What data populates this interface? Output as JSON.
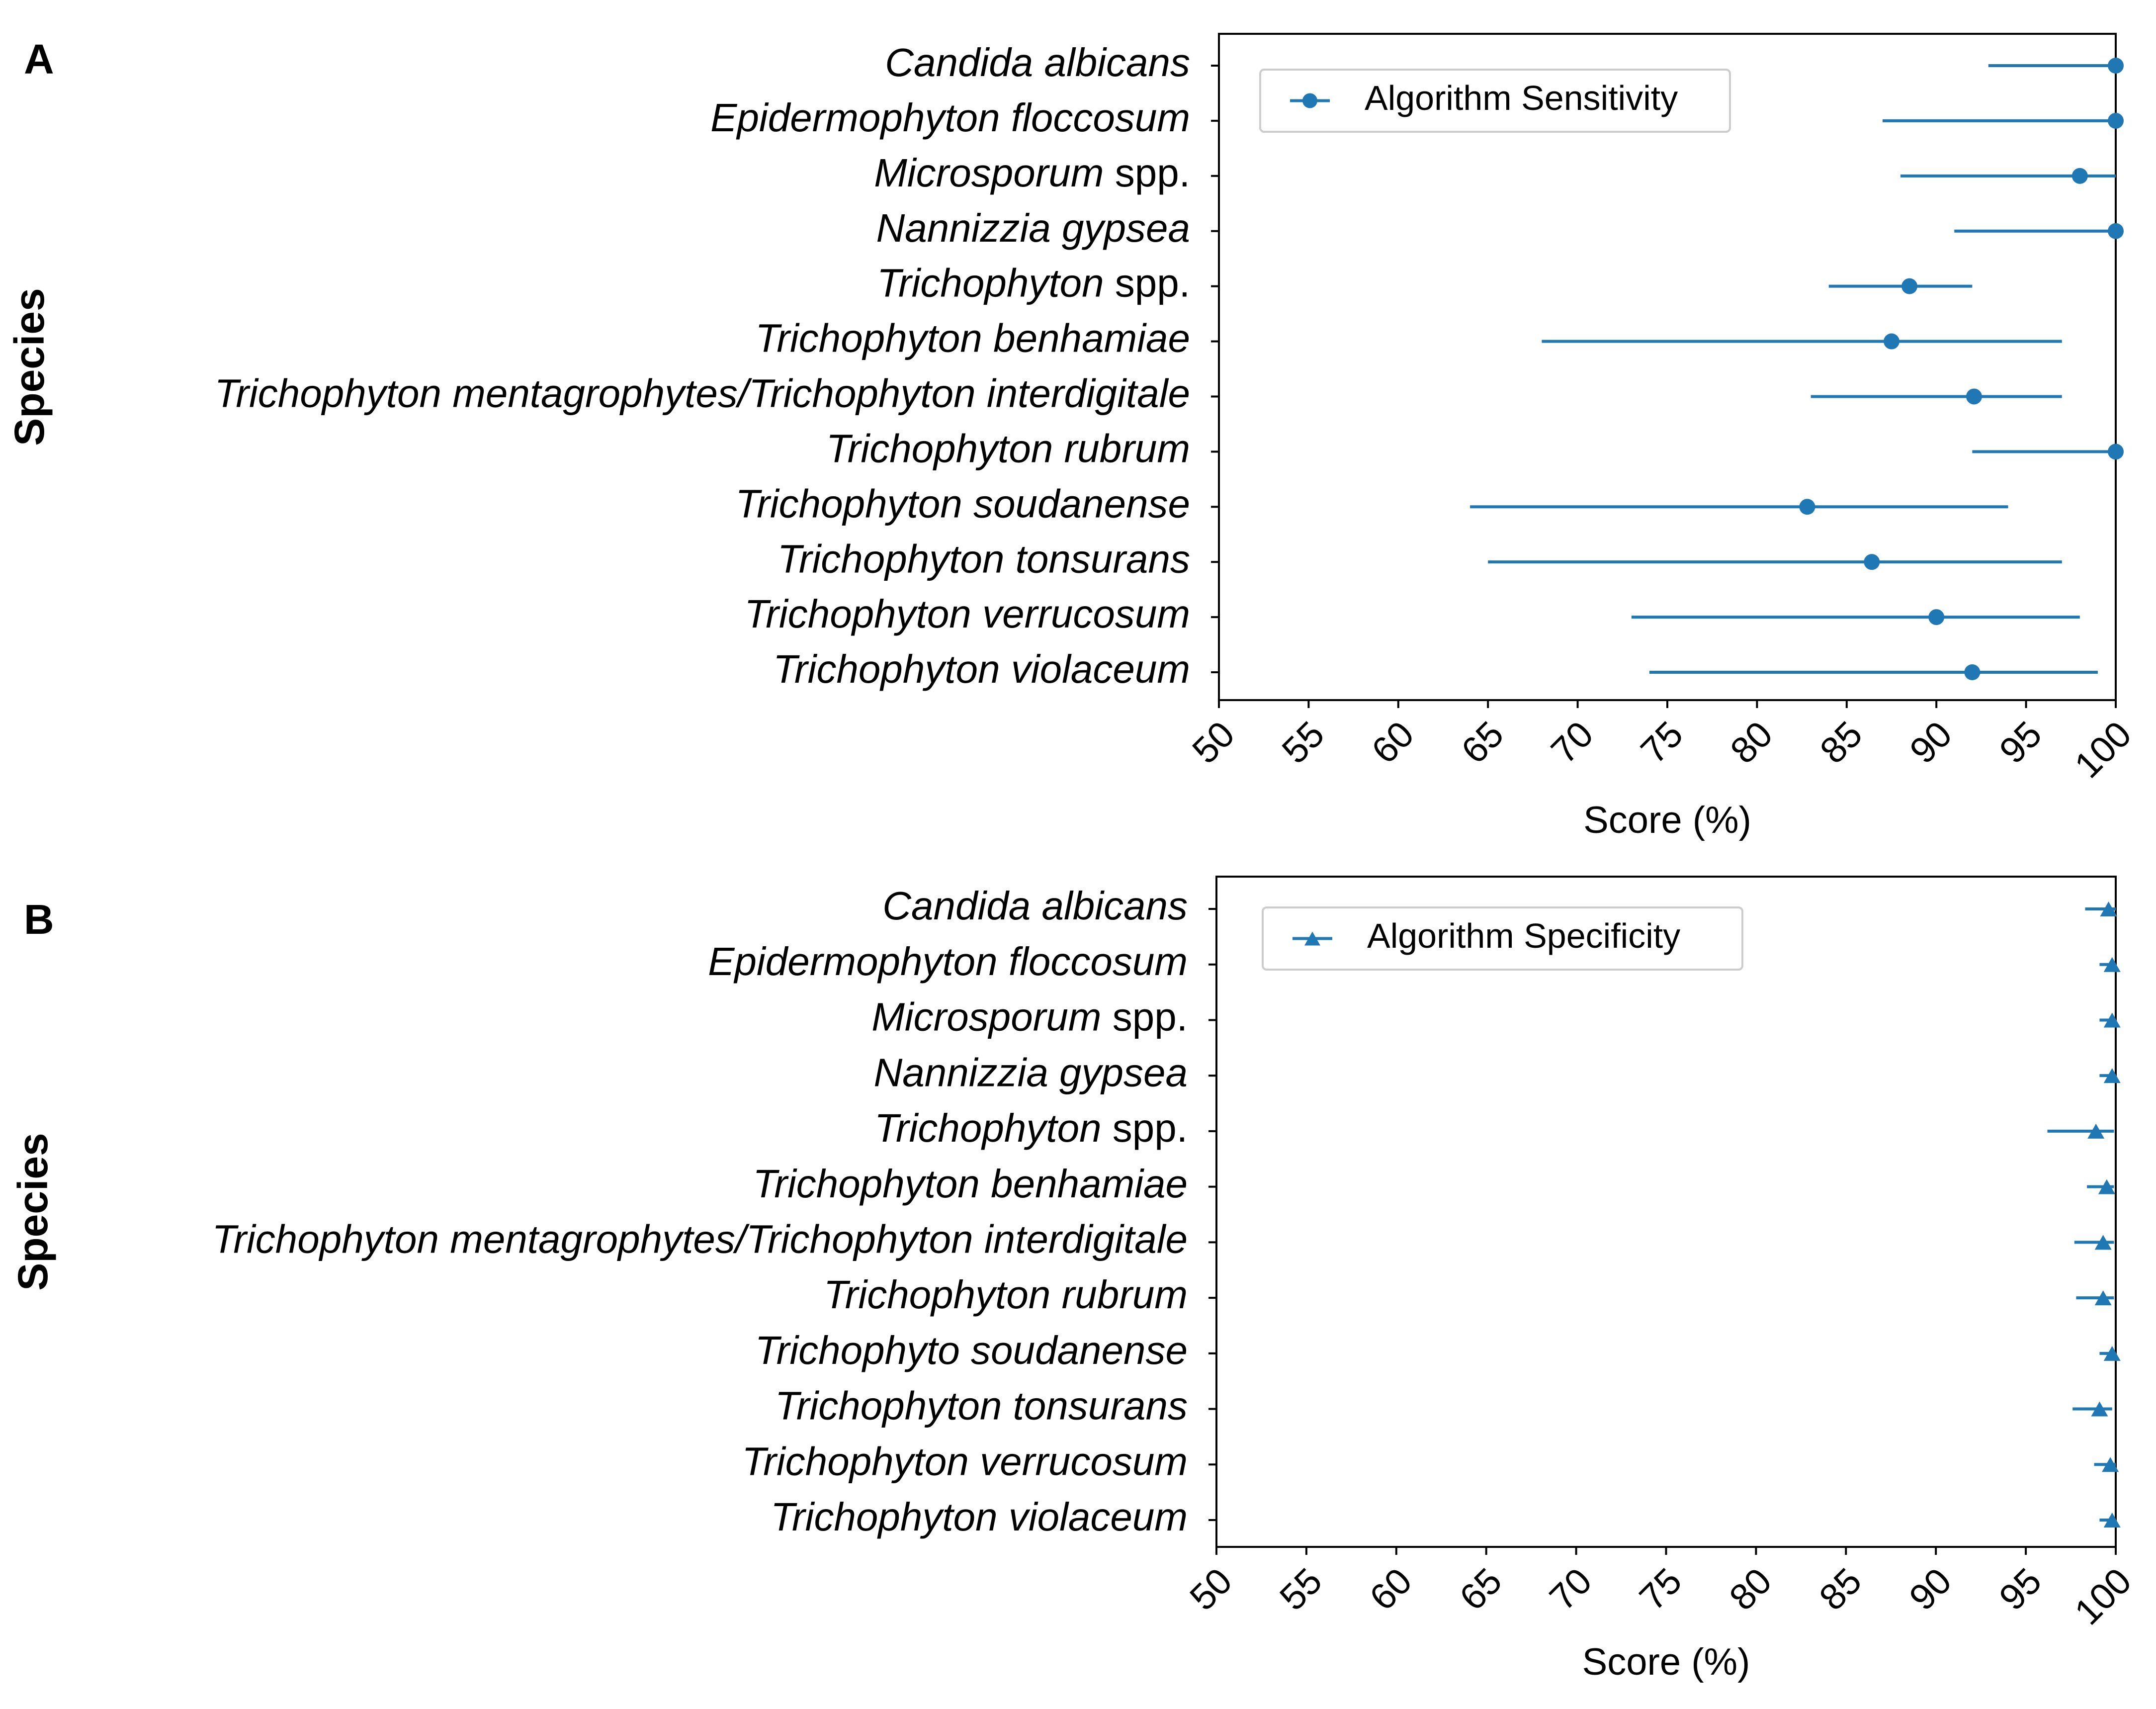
{
  "chart_data": [
    {
      "type": "scatter",
      "panel_label": "A",
      "categories": [
        "Candida albicans",
        "Epidermophyton floccosum",
        "Microsporum spp.",
        "Nannizzia gypsea",
        "Trichophyton spp.",
        "Trichophyton benhamiae",
        "Trichophyton mentagrophytes/Trichophyton interdigitale",
        "Trichophyton rubrum",
        "Trichophyton soudanense",
        "Trichophyton tonsurans",
        "Trichophyton verrucosum",
        "Trichophyton violaceum"
      ],
      "series": [
        {
          "name": "Algorithm Sensitivity",
          "marker": "circle",
          "color": "#1f77b4",
          "values": [
            100,
            100,
            98,
            100,
            88.5,
            87.5,
            92.1,
            100,
            82.8,
            86.4,
            90,
            92
          ],
          "ci_low": [
            92.9,
            87,
            88,
            91,
            84,
            68,
            83,
            92,
            64,
            65,
            73,
            74
          ],
          "ci_high": [
            100,
            100,
            100,
            100,
            92,
            97,
            97,
            100,
            94,
            97,
            98,
            99
          ]
        }
      ],
      "xlim": [
        50,
        100
      ],
      "xticks": [
        "50",
        "55",
        "60",
        "65",
        "70",
        "75",
        "80",
        "85",
        "90",
        "95",
        "100"
      ],
      "xlabel": "Score (%)",
      "ylabel": "Species",
      "legend_position": "top-left"
    },
    {
      "type": "scatter",
      "panel_label": "B",
      "categories": [
        "Candida albicans",
        "Epidermophyton floccosum",
        "Microsporum spp.",
        "Nannizzia gypsea",
        "Trichophyton spp.",
        "Trichophyton benhamiae",
        "Trichophyton mentagrophytes/Trichophyton interdigitale",
        "Trichophyton rubrum",
        "Trichophyto soudanense",
        "Trichophyton tonsurans",
        "Trichophyton verrucosum",
        "Trichophyton violaceum"
      ],
      "series": [
        {
          "name": "Algorithm Specificity",
          "marker": "triangle",
          "color": "#1f77b4",
          "values": [
            99.6,
            99.8,
            99.8,
            99.8,
            98.9,
            99.5,
            99.3,
            99.3,
            99.8,
            99.1,
            99.7,
            99.8
          ],
          "ci_low": [
            98.3,
            99.1,
            99.1,
            99.1,
            96.2,
            98.4,
            97.7,
            97.8,
            99.1,
            97.6,
            98.8,
            99.1
          ],
          "ci_high": [
            100,
            100,
            100,
            100,
            99.9,
            99.9,
            99.9,
            99.9,
            100,
            99.8,
            100,
            100
          ]
        }
      ],
      "xlim": [
        50,
        100
      ],
      "xticks": [
        "50",
        "55",
        "60",
        "65",
        "70",
        "75",
        "80",
        "85",
        "90",
        "95",
        "100"
      ],
      "xlabel": "Score  (%)",
      "ylabel": "Species",
      "legend_position": "top-left"
    }
  ]
}
